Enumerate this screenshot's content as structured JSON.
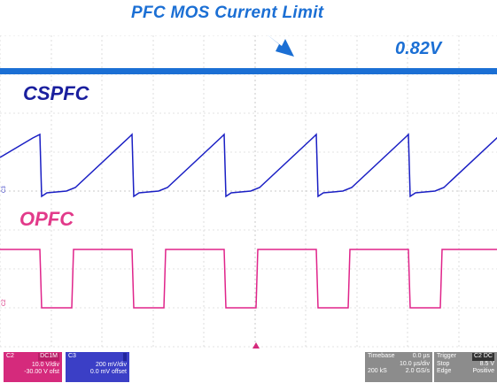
{
  "title": "PFC MOS Current Limit",
  "labels": {
    "limit_voltage": "0.82V",
    "ch3_name": "CSPFC",
    "ch2_name": "OPFC"
  },
  "colors": {
    "title": "#1b6fd4",
    "limit_line": "#1b6fd4",
    "ch3_trace": "#1a1fc4",
    "ch2_trace": "#e0248a",
    "grid": "#c8c8c8"
  },
  "status": {
    "ch2": {
      "name": "C2",
      "coupling": "DC1M",
      "scale": "10.0 V/div",
      "offset": "-30.00 V ofst"
    },
    "ch3": {
      "name": "C3",
      "scale": "200 mV/div",
      "offset": "0.0 mV offset"
    },
    "timebase": {
      "label": "Timebase",
      "delay": "0.0 µs",
      "scale": "10.0 µs/div",
      "samples": "200 kS",
      "rate": "2.0 GS/s"
    },
    "trigger": {
      "label": "Trigger",
      "source": "C2 DC",
      "mode": "Stop",
      "level": "8.5 V",
      "type": "Edge",
      "slope": "Positive"
    }
  }
}
